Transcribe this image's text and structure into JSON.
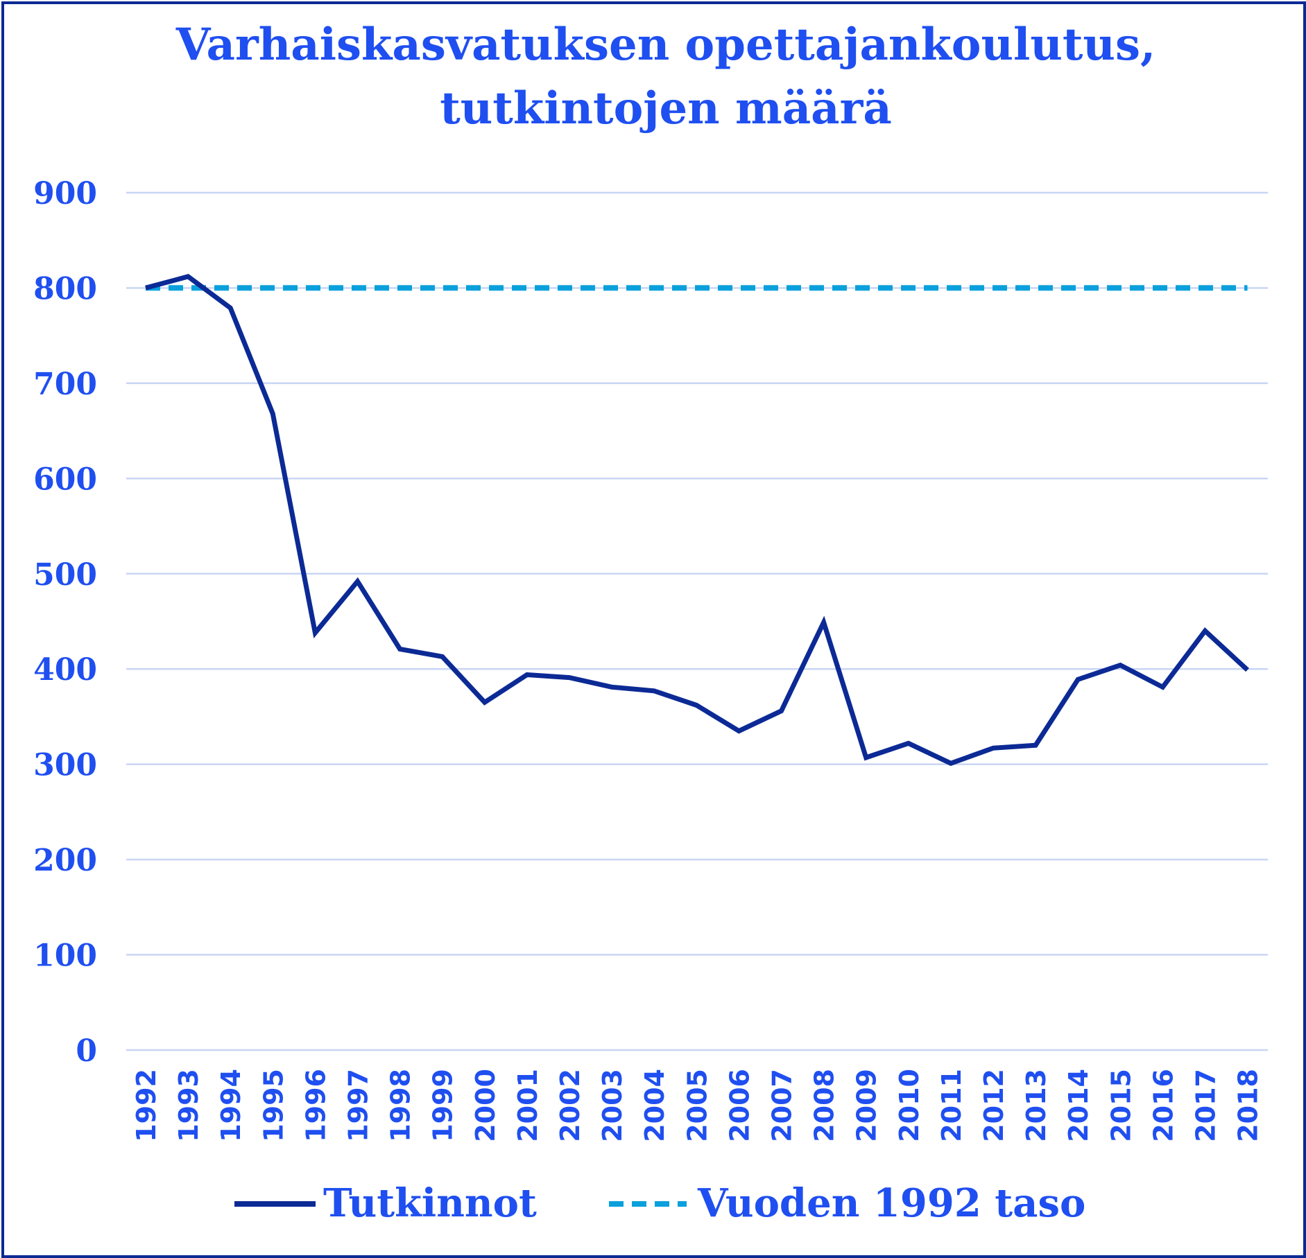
{
  "chart_data": {
    "type": "line",
    "title_lines": [
      "Varhaiskasvatuksen opettajankoulutus,",
      "tutkintojen määrä"
    ],
    "categories": [
      "1992",
      "1993",
      "1994",
      "1995",
      "1996",
      "1997",
      "1998",
      "1999",
      "2000",
      "2001",
      "2002",
      "2003",
      "2004",
      "2005",
      "2006",
      "2007",
      "2008",
      "2009",
      "2010",
      "2011",
      "2012",
      "2013",
      "2014",
      "2015",
      "2016",
      "2017",
      "2018"
    ],
    "series": [
      {
        "name": "Tutkinnot",
        "color": "#0c2a95",
        "style": "solid",
        "values": [
          800,
          812,
          779,
          668,
          438,
          492,
          421,
          413,
          365,
          394,
          391,
          381,
          377,
          362,
          335,
          356,
          449,
          307,
          322,
          301,
          317,
          320,
          389,
          404,
          381,
          440,
          399
        ]
      },
      {
        "name": "Vuoden 1992 taso",
        "color": "#0aa0dc",
        "style": "dashed",
        "values": [
          800,
          800,
          800,
          800,
          800,
          800,
          800,
          800,
          800,
          800,
          800,
          800,
          800,
          800,
          800,
          800,
          800,
          800,
          800,
          800,
          800,
          800,
          800,
          800,
          800,
          800,
          800
        ]
      }
    ],
    "ylim": [
      0,
      900
    ],
    "yticks": [
      "0",
      "100",
      "200",
      "300",
      "400",
      "500",
      "600",
      "700",
      "800",
      "900"
    ],
    "grid": true,
    "legend_position": "bottom"
  }
}
